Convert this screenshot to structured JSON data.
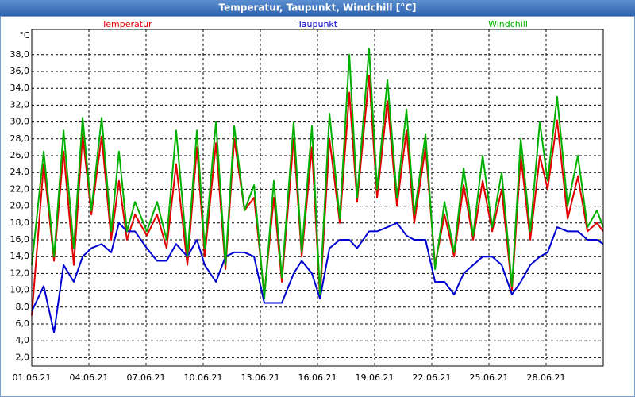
{
  "chart_data": {
    "type": "line",
    "title": "Temperatur, Taupunkt, Windchill [°C]",
    "y_unit": "°C",
    "x": [
      0,
      0.63,
      1.17,
      1.67,
      2.21,
      2.67,
      3.13,
      3.67,
      4.17,
      4.58,
      5.0,
      5.42,
      6.04,
      6.58,
      7.08,
      7.58,
      8.17,
      8.67,
      9.08,
      9.67,
      10.17,
      10.63,
      11.17,
      11.67,
      12.21,
      12.71,
      13.13,
      13.75,
      14.17,
      14.71,
      15.13,
      15.63,
      16.17,
      16.67,
      17.08,
      17.71,
      18.13,
      18.67,
      19.17,
      19.67,
      20.08,
      20.67,
      21.17,
      21.67,
      22.17,
      22.67,
      23.17,
      23.67,
      24.17,
      24.67,
      25.21,
      25.67,
      26.17,
      26.67,
      27.08,
      27.58,
      28.13,
      28.67,
      29.17,
      29.67,
      30
    ],
    "series": [
      {
        "name": "Temperatur",
        "color": "#e00000",
        "values": [
          7,
          25,
          13.5,
          26.5,
          13,
          28.5,
          19,
          28.3,
          16,
          23,
          16,
          19,
          16.5,
          19,
          15,
          25,
          13,
          27,
          14,
          27.5,
          12.5,
          28,
          19.5,
          21,
          9.5,
          21,
          11,
          28,
          14,
          27,
          9,
          28,
          18,
          33.5,
          20.5,
          35.5,
          21,
          32.5,
          20,
          29,
          18,
          27,
          13,
          19,
          14,
          22.5,
          16,
          23,
          17,
          22,
          10,
          26,
          16,
          26,
          22,
          30.2,
          18.5,
          23.5,
          17,
          18,
          17
        ]
      },
      {
        "name": "Taupunkt",
        "color": "#0000d0",
        "values": [
          7.5,
          10.5,
          5,
          13,
          11,
          14,
          15,
          15.5,
          14.5,
          18,
          17,
          17,
          15,
          13.5,
          13.5,
          15.5,
          14,
          16,
          13,
          11,
          14,
          14.5,
          14.5,
          14,
          8.5,
          8.5,
          8.5,
          12,
          13.5,
          12,
          9,
          15,
          16,
          16,
          15,
          17,
          17,
          17.5,
          18,
          16.5,
          16,
          16,
          11,
          11,
          9.5,
          12,
          13,
          14,
          14,
          13,
          9.5,
          11,
          13,
          14,
          14.5,
          17.5,
          17,
          17,
          16,
          16,
          15.5
        ]
      },
      {
        "name": "Windchill",
        "color": "#00b000",
        "values": [
          13,
          26.5,
          14,
          29,
          15,
          30.5,
          19.5,
          30.5,
          17,
          26.5,
          17,
          20.5,
          17,
          20.5,
          16,
          29,
          14,
          29,
          15,
          30,
          13,
          29.5,
          19.5,
          22.5,
          9,
          23,
          11.5,
          30,
          14.5,
          29.5,
          9.5,
          31,
          18.5,
          38,
          21,
          38.7,
          22,
          35,
          21,
          31.5,
          19,
          28.5,
          12.5,
          20.5,
          14.5,
          24.5,
          16.5,
          26,
          17.5,
          24,
          10.5,
          28,
          17,
          30,
          23,
          33,
          20,
          26,
          17.5,
          19.5,
          17.5
        ]
      }
    ],
    "xlim": [
      0,
      30
    ],
    "xticks": [
      {
        "value": 0,
        "label": "01.06.21"
      },
      {
        "value": 3,
        "label": "04.06.21"
      },
      {
        "value": 6,
        "label": "07.06.21"
      },
      {
        "value": 9,
        "label": "10.06.21"
      },
      {
        "value": 12,
        "label": "13.06.21"
      },
      {
        "value": 15,
        "label": "16.06.21"
      },
      {
        "value": 18,
        "label": "19.06.21"
      },
      {
        "value": 21,
        "label": "22.06.21"
      },
      {
        "value": 24,
        "label": "25.06.21"
      },
      {
        "value": 27,
        "label": "28.06.21"
      }
    ],
    "ylim": [
      1,
      41
    ],
    "yticks": [
      {
        "value": 2,
        "label": "2,0"
      },
      {
        "value": 4,
        "label": "4,0"
      },
      {
        "value": 6,
        "label": "6,0"
      },
      {
        "value": 8,
        "label": "8,0"
      },
      {
        "value": 10,
        "label": "10,0"
      },
      {
        "value": 12,
        "label": "12,0"
      },
      {
        "value": 14,
        "label": "14,0"
      },
      {
        "value": 16,
        "label": "16,0"
      },
      {
        "value": 18,
        "label": "18,0"
      },
      {
        "value": 20,
        "label": "20,0"
      },
      {
        "value": 22,
        "label": "22,0"
      },
      {
        "value": 24,
        "label": "24,0"
      },
      {
        "value": 26,
        "label": "26,0"
      },
      {
        "value": 28,
        "label": "28,0"
      },
      {
        "value": 30,
        "label": "30,0"
      },
      {
        "value": 32,
        "label": "32,0"
      },
      {
        "value": 34,
        "label": "34,0"
      },
      {
        "value": 36,
        "label": "36,0"
      },
      {
        "value": 38,
        "label": "38,0"
      }
    ],
    "grid": true
  }
}
